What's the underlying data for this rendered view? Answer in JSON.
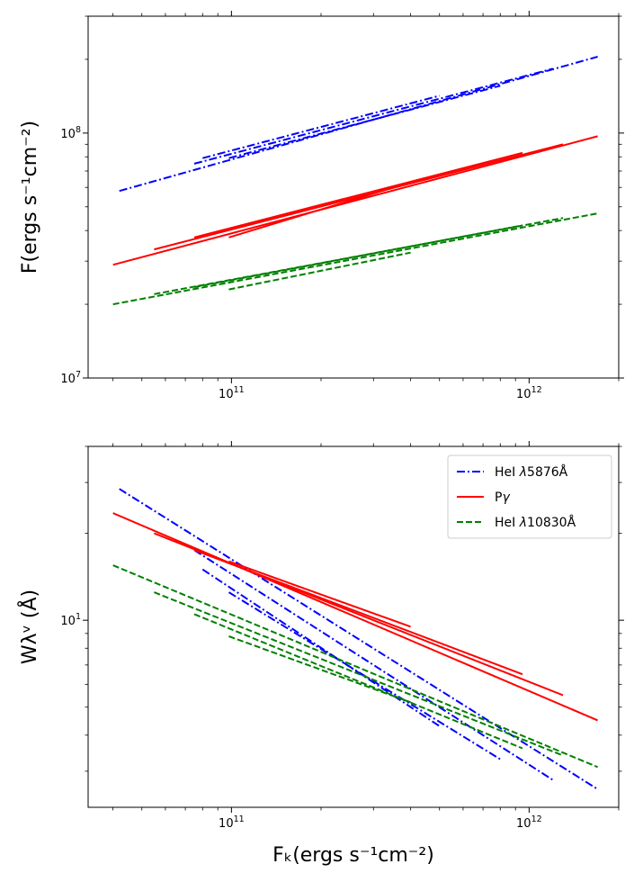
{
  "chart_data": [
    {
      "type": "line",
      "panel": "top",
      "title": "",
      "xscale": "log",
      "yscale": "log",
      "xlim": [
        33000000000.0,
        2000000000000.0
      ],
      "ylim": [
        10000000.0,
        300000000.0
      ],
      "xlabel": "",
      "ylabel": "F(ergs s⁻¹cm⁻²)",
      "xticklabels": [
        {
          "value": 100000000000.0,
          "mant": "10",
          "exp": "11"
        },
        {
          "value": 1000000000000.0,
          "mant": "10",
          "exp": "12"
        }
      ],
      "yticklabels": [
        {
          "value": 10000000.0,
          "mant": "10",
          "exp": "7"
        },
        {
          "value": 100000000.0,
          "mant": "10",
          "exp": "8"
        }
      ],
      "grid": false,
      "series": [
        {
          "name": "HeI λ5876Å",
          "color": "#0000ff",
          "style": "dashdot",
          "segments": [
            {
              "x": [
                42000000000.0,
                1700000000000.0
              ],
              "y": [
                58000000.0,
                205000000.0
              ]
            },
            {
              "x": [
                75000000000.0,
                1200000000000.0
              ],
              "y": [
                75000000.0,
                183000000.0
              ]
            },
            {
              "x": [
                98000000000.0,
                800000000000.0
              ],
              "y": [
                79000000.0,
                156000000.0
              ]
            },
            {
              "x": [
                80000000000.0,
                500000000000.0
              ],
              "y": [
                79000000.0,
                142000000.0
              ]
            }
          ]
        },
        {
          "name": "Pγ",
          "color": "#ff0000",
          "style": "solid",
          "segments": [
            {
              "x": [
                40000000000.0,
                1700000000000.0
              ],
              "y": [
                29000000.0,
                97000000.0
              ]
            },
            {
              "x": [
                55000000000.0,
                1300000000000.0
              ],
              "y": [
                33500000.0,
                90000000.0
              ]
            },
            {
              "x": [
                75000000000.0,
                950000000000.0
              ],
              "y": [
                37500000.0,
                83000000.0
              ]
            },
            {
              "x": [
                98000000000.0,
                400000000000.0
              ],
              "y": [
                37500000.0,
                63000000.0
              ]
            }
          ]
        },
        {
          "name": "HeI λ10830Å",
          "color": "#008000",
          "style": "dashed",
          "segments": [
            {
              "x": [
                40000000000.0,
                1700000000000.0
              ],
              "y": [
                20000000.0,
                47000000.0
              ]
            },
            {
              "x": [
                55000000000.0,
                1300000000000.0
              ],
              "y": [
                22000000.0,
                45000000.0
              ]
            },
            {
              "x": [
                75000000000.0,
                950000000000.0
              ],
              "y": [
                23500000.0,
                42000000.0
              ]
            },
            {
              "x": [
                98000000000.0,
                400000000000.0
              ],
              "y": [
                23000000.0,
                32500000.0
              ]
            }
          ]
        }
      ]
    },
    {
      "type": "line",
      "panel": "bottom",
      "title": "",
      "xscale": "log",
      "yscale": "log",
      "xlim": [
        33000000000.0,
        2000000000000.0
      ],
      "ylim": [
        2.25,
        40
      ],
      "xlabel": "Fₖ(ergs s⁻¹cm⁻²)",
      "ylabel": "Wλᵛ (Å)",
      "xticklabels": [
        {
          "value": 100000000000.0,
          "mant": "10",
          "exp": "11"
        },
        {
          "value": 1000000000000.0,
          "mant": "10",
          "exp": "12"
        }
      ],
      "yticklabels": [
        {
          "value": 10,
          "mant": "10",
          "exp": "1"
        }
      ],
      "legend_position": "top-right",
      "grid": false,
      "series": [
        {
          "name": "HeI λ5876Å",
          "legend_prefix": "HeI ",
          "legend_lambda": "λ",
          "legend_suffix": "5876Å",
          "color": "#0000ff",
          "style": "dashdot",
          "segments": [
            {
              "x": [
                42000000000.0,
                1700000000000.0
              ],
              "y": [
                28.5,
                2.6
              ]
            },
            {
              "x": [
                75000000000.0,
                1200000000000.0
              ],
              "y": [
                17.5,
                2.8
              ]
            },
            {
              "x": [
                98000000000.0,
                800000000000.0
              ],
              "y": [
                12.5,
                3.3
              ]
            },
            {
              "x": [
                80000000000.0,
                500000000000.0
              ],
              "y": [
                15.0,
                4.3
              ]
            }
          ]
        },
        {
          "name": "Pγ",
          "legend_prefix": "P",
          "legend_lambda": "γ",
          "legend_suffix": "",
          "color": "#ff0000",
          "style": "solid",
          "segments": [
            {
              "x": [
                40000000000.0,
                1700000000000.0
              ],
              "y": [
                23.5,
                4.5
              ]
            },
            {
              "x": [
                55000000000.0,
                1300000000000.0
              ],
              "y": [
                20.0,
                5.5
              ]
            },
            {
              "x": [
                75000000000.0,
                950000000000.0
              ],
              "y": [
                17.5,
                6.5
              ]
            },
            {
              "x": [
                98000000000.0,
                400000000000.0
              ],
              "y": [
                16.0,
                9.5
              ]
            }
          ]
        },
        {
          "name": "HeI λ10830Å",
          "legend_prefix": "HeI ",
          "legend_lambda": "λ",
          "legend_suffix": "10830Å",
          "color": "#008000",
          "style": "dashed",
          "segments": [
            {
              "x": [
                40000000000.0,
                1700000000000.0
              ],
              "y": [
                15.5,
                3.1
              ]
            },
            {
              "x": [
                55000000000.0,
                1300000000000.0
              ],
              "y": [
                12.5,
                3.4
              ]
            },
            {
              "x": [
                75000000000.0,
                950000000000.0
              ],
              "y": [
                10.5,
                3.6
              ]
            },
            {
              "x": [
                98000000000.0,
                400000000000.0
              ],
              "y": [
                8.8,
                5.2
              ]
            }
          ]
        }
      ]
    }
  ]
}
